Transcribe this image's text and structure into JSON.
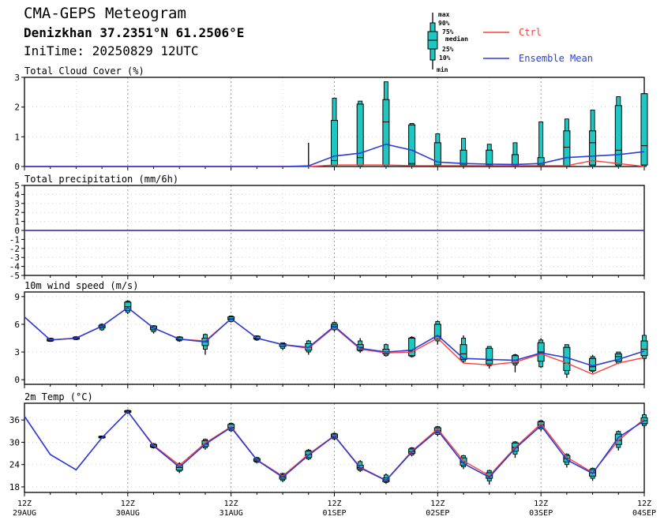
{
  "header": {
    "title": "CMA-GEPS Meteogram",
    "location": "Denizkhan 37.2351°N 61.2506°E",
    "init_time": "IniTime: 20250829 12UTC"
  },
  "legend": {
    "box_labels": [
      "max",
      "90%",
      "75%",
      "median",
      "25%",
      "10%",
      "min"
    ],
    "ctrl_label": "Ctrl",
    "mean_label": "Ensemble Mean",
    "ctrl_color": "#ff3c3c",
    "mean_color": "#2b3cd8",
    "box_color": "#1fc7c2"
  },
  "chart_data": [
    {
      "type": "box",
      "title": "Total Cloud Cover (%)",
      "ylim": [
        0,
        3
      ],
      "yticks": [
        0,
        1,
        2,
        3
      ],
      "grid": true,
      "steps": [
        0,
        1,
        2,
        3,
        4,
        5,
        6,
        7,
        8,
        9,
        10,
        11,
        12,
        13,
        14,
        15,
        16,
        17,
        18,
        19,
        20,
        21,
        22,
        23,
        24
      ],
      "boxes": [
        {
          "step": 12,
          "min": 0,
          "p10": 0,
          "p25": 0.05,
          "median": 0.2,
          "p75": 1.55,
          "p90": 2.3,
          "max": 2.3
        },
        {
          "step": 13,
          "min": 0,
          "p10": 0,
          "p25": 0.05,
          "median": 0.3,
          "p75": 2.1,
          "p90": 2.2,
          "max": 2.2
        },
        {
          "step": 14,
          "min": 0,
          "p10": 0,
          "p25": 0.05,
          "median": 1.5,
          "p75": 2.25,
          "p90": 2.85,
          "max": 2.85
        },
        {
          "step": 15,
          "min": 0,
          "p10": 0,
          "p25": 0.05,
          "median": 0.1,
          "p75": 1.4,
          "p90": 1.45,
          "max": 1.45
        },
        {
          "step": 16,
          "min": 0,
          "p10": 0,
          "p25": 0,
          "median": 0.05,
          "p75": 0.8,
          "p90": 1.1,
          "max": 1.1
        },
        {
          "step": 17,
          "min": 0,
          "p10": 0,
          "p25": 0,
          "median": 0.05,
          "p75": 0.55,
          "p90": 0.95,
          "max": 0.95
        },
        {
          "step": 18,
          "min": 0,
          "p10": 0,
          "p25": 0,
          "median": 0.05,
          "p75": 0.55,
          "p90": 0.75,
          "max": 0.75
        },
        {
          "step": 19,
          "min": 0,
          "p10": 0,
          "p25": 0,
          "median": 0.05,
          "p75": 0.4,
          "p90": 0.8,
          "max": 0.8
        },
        {
          "step": 20,
          "min": 0,
          "p10": 0,
          "p25": 0,
          "median": 0.05,
          "p75": 0.3,
          "p90": 1.5,
          "max": 1.5
        },
        {
          "step": 21,
          "min": 0,
          "p10": 0,
          "p25": 0,
          "median": 0.65,
          "p75": 1.2,
          "p90": 1.6,
          "max": 1.6
        },
        {
          "step": 22,
          "min": 0,
          "p10": 0,
          "p25": 0.05,
          "median": 0.8,
          "p75": 1.2,
          "p90": 1.9,
          "max": 1.9
        },
        {
          "step": 23,
          "min": 0,
          "p10": 0,
          "p25": 0.05,
          "median": 0.55,
          "p75": 2.05,
          "p90": 2.35,
          "max": 2.35
        },
        {
          "step": 24,
          "min": 0,
          "p10": 0,
          "p25": 0.05,
          "median": 0.7,
          "p75": 2.45,
          "p90": 2.45,
          "max": 2.45
        }
      ],
      "spikes": [
        {
          "step": 11,
          "min": 0,
          "max": 0.8
        }
      ],
      "ctrl": [
        0,
        0,
        0,
        0,
        0,
        0,
        0,
        0,
        0,
        0,
        0,
        0,
        0.05,
        0.05,
        0.05,
        0.03,
        0.03,
        0.03,
        0.03,
        0.03,
        0.03,
        0.03,
        0.2,
        0.1,
        0
      ],
      "mean": [
        0,
        0,
        0,
        0,
        0,
        0,
        0,
        0,
        0,
        0,
        0,
        0.02,
        0.35,
        0.45,
        0.75,
        0.55,
        0.15,
        0.1,
        0.08,
        0.07,
        0.1,
        0.3,
        0.35,
        0.4,
        0.5
      ]
    },
    {
      "type": "line",
      "title": "Total precipitation (mm/6h)",
      "ylim": [
        -5,
        5
      ],
      "yticks": [
        -5,
        -4,
        -3,
        -2,
        -1,
        0,
        1,
        2,
        3,
        4,
        5
      ],
      "grid": true,
      "steps": [
        0,
        1,
        2,
        3,
        4,
        5,
        6,
        7,
        8,
        9,
        10,
        11,
        12,
        13,
        14,
        15,
        16,
        17,
        18,
        19,
        20,
        21,
        22,
        23,
        24
      ],
      "boxes": [],
      "spikes": [],
      "ctrl": [
        0,
        0,
        0,
        0,
        0,
        0,
        0,
        0,
        0,
        0,
        0,
        0,
        0,
        0,
        0,
        0,
        0,
        0,
        0,
        0,
        0,
        0,
        0,
        0,
        0
      ],
      "mean": [
        0,
        0,
        0,
        0,
        0,
        0,
        0,
        0,
        0,
        0,
        0,
        0,
        0,
        0,
        0,
        0,
        0,
        0,
        0,
        0,
        0,
        0,
        0,
        0,
        0
      ]
    },
    {
      "type": "box",
      "title": "10m wind speed (m/s)",
      "ylim": [
        -0.5,
        9.5
      ],
      "yticks": [
        0,
        3,
        6,
        9
      ],
      "grid": true,
      "steps": [
        0,
        1,
        2,
        3,
        4,
        5,
        6,
        7,
        8,
        9,
        10,
        11,
        12,
        13,
        14,
        15,
        16,
        17,
        18,
        19,
        20,
        21,
        22,
        23,
        24
      ],
      "boxes": [
        {
          "step": 1,
          "min": 4.1,
          "p10": 4.15,
          "p25": 4.2,
          "median": 4.3,
          "p75": 4.45,
          "p90": 4.5,
          "max": 4.55
        },
        {
          "step": 2,
          "min": 4.3,
          "p10": 4.35,
          "p25": 4.4,
          "median": 4.5,
          "p75": 4.6,
          "p90": 4.65,
          "max": 4.7
        },
        {
          "step": 3,
          "min": 5.3,
          "p10": 5.4,
          "p25": 5.6,
          "median": 5.75,
          "p75": 5.9,
          "p90": 6.0,
          "max": 6.1
        },
        {
          "step": 4,
          "min": 7.1,
          "p10": 7.3,
          "p25": 7.5,
          "median": 7.9,
          "p75": 8.4,
          "p90": 8.5,
          "max": 8.6
        },
        {
          "step": 5,
          "min": 5.0,
          "p10": 5.2,
          "p25": 5.4,
          "median": 5.6,
          "p75": 5.8,
          "p90": 5.85,
          "max": 5.9
        },
        {
          "step": 6,
          "min": 4.1,
          "p10": 4.2,
          "p25": 4.3,
          "median": 4.4,
          "p75": 4.6,
          "p90": 4.65,
          "max": 4.7
        },
        {
          "step": 7,
          "min": 2.7,
          "p10": 3.3,
          "p25": 3.7,
          "median": 4.1,
          "p75": 4.5,
          "p90": 4.9,
          "max": 5.0
        },
        {
          "step": 8,
          "min": 6.2,
          "p10": 6.3,
          "p25": 6.5,
          "median": 6.6,
          "p75": 6.8,
          "p90": 6.9,
          "max": 6.95
        },
        {
          "step": 9,
          "min": 4.2,
          "p10": 4.3,
          "p25": 4.4,
          "median": 4.5,
          "p75": 4.7,
          "p90": 4.75,
          "max": 4.8
        },
        {
          "step": 10,
          "min": 3.2,
          "p10": 3.4,
          "p25": 3.6,
          "median": 3.8,
          "p75": 3.9,
          "p90": 4.0,
          "max": 4.0
        },
        {
          "step": 11,
          "min": 2.7,
          "p10": 3.0,
          "p25": 3.2,
          "median": 3.5,
          "p75": 3.9,
          "p90": 4.2,
          "max": 4.3
        },
        {
          "step": 12,
          "min": 5.2,
          "p10": 5.4,
          "p25": 5.6,
          "median": 5.8,
          "p75": 6.0,
          "p90": 6.2,
          "max": 6.3
        },
        {
          "step": 13,
          "min": 2.9,
          "p10": 3.1,
          "p25": 3.2,
          "median": 3.5,
          "p75": 3.8,
          "p90": 4.2,
          "max": 4.5
        },
        {
          "step": 14,
          "min": 2.5,
          "p10": 2.6,
          "p25": 2.8,
          "median": 3.0,
          "p75": 3.3,
          "p90": 3.8,
          "max": 3.9
        },
        {
          "step": 15,
          "min": 2.4,
          "p10": 2.5,
          "p25": 2.6,
          "median": 3.1,
          "p75": 4.5,
          "p90": 4.6,
          "max": 4.7
        },
        {
          "step": 16,
          "min": 3.8,
          "p10": 4.2,
          "p25": 4.4,
          "median": 4.7,
          "p75": 6.0,
          "p90": 6.3,
          "max": 6.4
        },
        {
          "step": 17,
          "min": 1.8,
          "p10": 2.0,
          "p25": 2.2,
          "median": 2.8,
          "p75": 3.8,
          "p90": 4.5,
          "max": 4.8
        },
        {
          "step": 18,
          "min": 1.2,
          "p10": 1.5,
          "p25": 1.7,
          "median": 2.1,
          "p75": 3.4,
          "p90": 3.6,
          "max": 3.6
        },
        {
          "step": 19,
          "min": 0.8,
          "p10": 1.6,
          "p25": 1.8,
          "median": 2.1,
          "p75": 2.6,
          "p90": 2.7,
          "max": 2.8
        },
        {
          "step": 20,
          "min": 1.3,
          "p10": 1.4,
          "p25": 2.0,
          "median": 3.0,
          "p75": 4.0,
          "p90": 4.3,
          "max": 4.5
        },
        {
          "step": 21,
          "min": 0.2,
          "p10": 0.6,
          "p25": 1.0,
          "median": 1.8,
          "p75": 3.5,
          "p90": 3.8,
          "max": 3.8
        },
        {
          "step": 22,
          "min": 0.7,
          "p10": 0.9,
          "p25": 1.0,
          "median": 1.4,
          "p75": 2.3,
          "p90": 2.5,
          "max": 2.7
        },
        {
          "step": 23,
          "min": 1.7,
          "p10": 1.8,
          "p25": 2.0,
          "median": 2.5,
          "p75": 2.8,
          "p90": 3.0,
          "max": 3.0
        },
        {
          "step": 24,
          "min": 2.0,
          "p10": 2.3,
          "p25": 2.6,
          "median": 3.3,
          "p75": 4.2,
          "p90": 4.8,
          "max": 4.8
        }
      ],
      "spikes": [],
      "ctrl": [
        6.8,
        4.3,
        4.5,
        5.8,
        7.8,
        5.6,
        4.4,
        4.2,
        6.6,
        4.5,
        3.8,
        3.4,
        5.7,
        3.3,
        2.9,
        3.0,
        4.5,
        1.8,
        1.6,
        1.9,
        2.8,
        1.8,
        0.6,
        1.8,
        2.4
      ],
      "mean": [
        6.8,
        4.3,
        4.5,
        5.8,
        7.8,
        5.6,
        4.4,
        4.1,
        6.6,
        4.5,
        3.8,
        3.5,
        5.8,
        3.4,
        3.0,
        3.2,
        4.8,
        2.3,
        2.2,
        2.1,
        2.9,
        2.4,
        1.5,
        2.2,
        3.1
      ]
    },
    {
      "type": "box",
      "title": "2m Temp (°C)",
      "ylim": [
        16.5,
        40.5
      ],
      "yticks": [
        18,
        24,
        30,
        36
      ],
      "grid": true,
      "steps": [
        0,
        1,
        2,
        3,
        4,
        5,
        6,
        7,
        8,
        9,
        10,
        11,
        12,
        13,
        14,
        15,
        16,
        17,
        18,
        19,
        20,
        21,
        22,
        23,
        24
      ],
      "boxes": [
        {
          "step": 3,
          "min": 31.0,
          "p10": 31.1,
          "p25": 31.2,
          "median": 31.4,
          "p75": 31.6,
          "p90": 31.7,
          "max": 31.8
        },
        {
          "step": 4,
          "min": 37.6,
          "p10": 37.9,
          "p25": 38.1,
          "median": 38.3,
          "p75": 38.5,
          "p90": 38.6,
          "max": 38.8
        },
        {
          "step": 5,
          "min": 28.3,
          "p10": 28.5,
          "p25": 28.7,
          "median": 29.0,
          "p75": 29.4,
          "p90": 29.6,
          "max": 29.8
        },
        {
          "step": 6,
          "min": 21.7,
          "p10": 22.2,
          "p25": 22.5,
          "median": 23.2,
          "p75": 24.0,
          "p90": 24.3,
          "max": 24.6
        },
        {
          "step": 7,
          "min": 28.0,
          "p10": 28.5,
          "p25": 28.9,
          "median": 29.5,
          "p75": 30.4,
          "p90": 30.8,
          "max": 31.0
        },
        {
          "step": 8,
          "min": 32.8,
          "p10": 33.1,
          "p25": 33.5,
          "median": 34.0,
          "p75": 34.8,
          "p90": 35.1,
          "max": 35.3
        },
        {
          "step": 9,
          "min": 24.3,
          "p10": 24.6,
          "p25": 24.9,
          "median": 25.2,
          "p75": 25.6,
          "p90": 25.9,
          "max": 26.1
        },
        {
          "step": 10,
          "min": 19.3,
          "p10": 19.7,
          "p25": 20.1,
          "median": 20.6,
          "p75": 21.3,
          "p90": 21.6,
          "max": 21.8
        },
        {
          "step": 11,
          "min": 25.2,
          "p10": 25.5,
          "p25": 25.9,
          "median": 26.7,
          "p75": 27.6,
          "p90": 27.9,
          "max": 28.2
        },
        {
          "step": 12,
          "min": 30.5,
          "p10": 30.9,
          "p25": 31.2,
          "median": 31.7,
          "p75": 32.2,
          "p90": 32.4,
          "max": 32.6
        },
        {
          "step": 13,
          "min": 22.0,
          "p10": 22.4,
          "p25": 22.8,
          "median": 23.2,
          "p75": 23.8,
          "p90": 24.8,
          "max": 25.2
        },
        {
          "step": 14,
          "min": 18.8,
          "p10": 19.2,
          "p25": 19.4,
          "median": 19.8,
          "p75": 20.4,
          "p90": 21.2,
          "max": 21.6
        },
        {
          "step": 15,
          "min": 26.2,
          "p10": 26.6,
          "p25": 27.0,
          "median": 27.5,
          "p75": 28.2,
          "p90": 28.5,
          "max": 28.7
        },
        {
          "step": 16,
          "min": 31.6,
          "p10": 32.1,
          "p25": 32.6,
          "median": 33.2,
          "p75": 33.9,
          "p90": 34.2,
          "max": 34.4
        },
        {
          "step": 17,
          "min": 22.8,
          "p10": 23.4,
          "p25": 23.8,
          "median": 24.6,
          "p75": 25.8,
          "p90": 26.4,
          "max": 26.6
        },
        {
          "step": 18,
          "min": 18.6,
          "p10": 19.6,
          "p25": 20.3,
          "median": 21.0,
          "p75": 21.8,
          "p90": 22.4,
          "max": 22.6
        },
        {
          "step": 19,
          "min": 25.8,
          "p10": 26.8,
          "p25": 27.6,
          "median": 28.6,
          "p75": 29.8,
          "p90": 30.1,
          "max": 30.3
        },
        {
          "step": 20,
          "min": 33.0,
          "p10": 33.6,
          "p25": 34.0,
          "median": 34.7,
          "p75": 35.5,
          "p90": 35.8,
          "max": 36.0
        },
        {
          "step": 21,
          "min": 23.2,
          "p10": 24.0,
          "p25": 24.7,
          "median": 25.6,
          "p75": 26.4,
          "p90": 26.8,
          "max": 27.0
        },
        {
          "step": 22,
          "min": 19.6,
          "p10": 20.3,
          "p25": 20.9,
          "median": 21.8,
          "p75": 22.6,
          "p90": 23.0,
          "max": 23.2
        },
        {
          "step": 23,
          "min": 27.8,
          "p10": 28.6,
          "p25": 29.4,
          "median": 30.5,
          "p75": 32.2,
          "p90": 32.9,
          "max": 33.2
        },
        {
          "step": 24,
          "min": 33.8,
          "p10": 34.5,
          "p25": 35.0,
          "median": 35.8,
          "p75": 36.6,
          "p90": 37.4,
          "max": 37.7
        }
      ],
      "spikes": [],
      "ctrl": [
        37.0,
        26.7,
        22.6,
        31.2,
        38.3,
        29.2,
        23.8,
        29.8,
        34.2,
        25.3,
        20.9,
        26.8,
        31.8,
        23.3,
        19.8,
        27.6,
        33.6,
        25.0,
        21.0,
        28.6,
        35.0,
        26.0,
        21.8,
        30.5,
        36.3
      ],
      "mean": [
        37.0,
        26.7,
        22.6,
        31.2,
        38.3,
        29.0,
        23.3,
        29.5,
        34.0,
        25.2,
        20.6,
        26.5,
        31.7,
        23.1,
        19.7,
        27.4,
        33.2,
        24.3,
        20.6,
        28.3,
        34.5,
        25.3,
        21.6,
        31.3,
        35.8
      ]
    }
  ],
  "time_axis": {
    "hour_labels": [
      "12Z",
      "12Z",
      "12Z",
      "12Z",
      "12Z",
      "12Z",
      "12Z"
    ],
    "date_labels": [
      "29AUG",
      "30AUG",
      "31AUG",
      "01SEP",
      "02SEP",
      "03SEP",
      "04SEP"
    ],
    "label_steps": [
      0,
      4,
      8,
      12,
      16,
      20,
      24
    ]
  }
}
